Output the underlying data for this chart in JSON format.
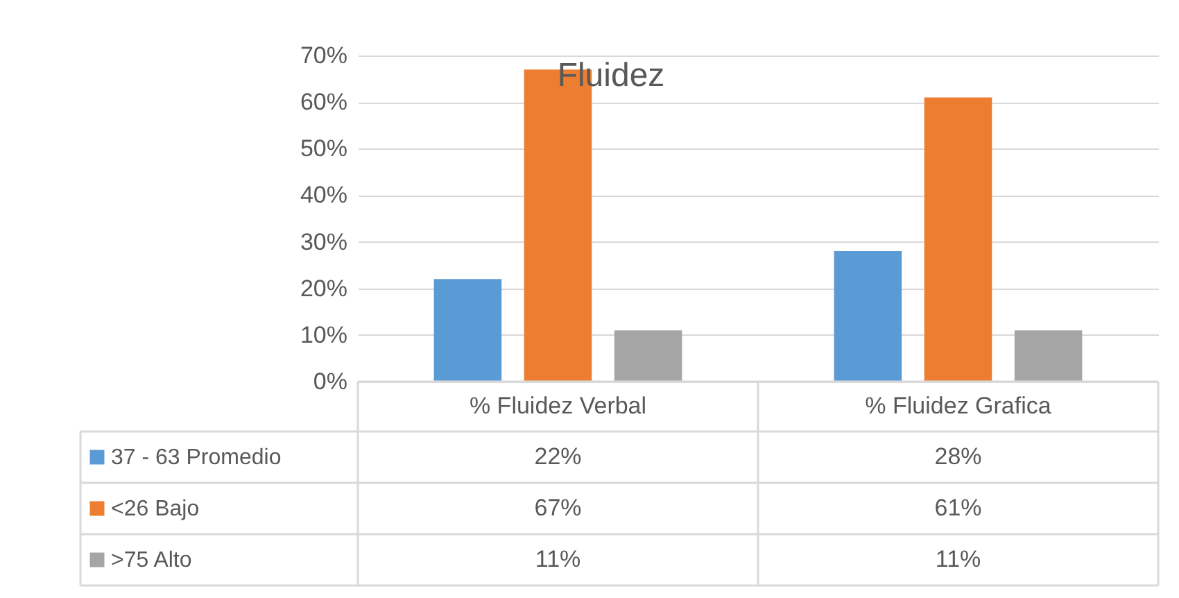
{
  "chart_data": {
    "type": "bar",
    "title": "Fluidez",
    "categories": [
      "% Fluidez Verbal",
      "% Fluidez Grafica"
    ],
    "series": [
      {
        "name": "37 - 63 Promedio",
        "color": "#5b9bd5",
        "values": [
          22,
          28
        ],
        "value_labels": [
          "22%",
          "28%"
        ]
      },
      {
        "name": "<26 Bajo",
        "color": "#ed7d31",
        "values": [
          67,
          61
        ],
        "value_labels": [
          "67%",
          "61%"
        ]
      },
      {
        "name": ">75 Alto",
        "color": "#a5a5a5",
        "values": [
          11,
          11
        ],
        "value_labels": [
          "11%",
          "11%"
        ]
      }
    ],
    "ylim": [
      0,
      70
    ],
    "yticks": [
      {
        "value": 0,
        "label": "0%"
      },
      {
        "value": 10,
        "label": "10%"
      },
      {
        "value": 20,
        "label": "20%"
      },
      {
        "value": 30,
        "label": "30%"
      },
      {
        "value": 40,
        "label": "40%"
      },
      {
        "value": 50,
        "label": "50%"
      },
      {
        "value": 60,
        "label": "60%"
      },
      {
        "value": 70,
        "label": "70%"
      }
    ],
    "grid": "y",
    "legend": "bottom left"
  }
}
